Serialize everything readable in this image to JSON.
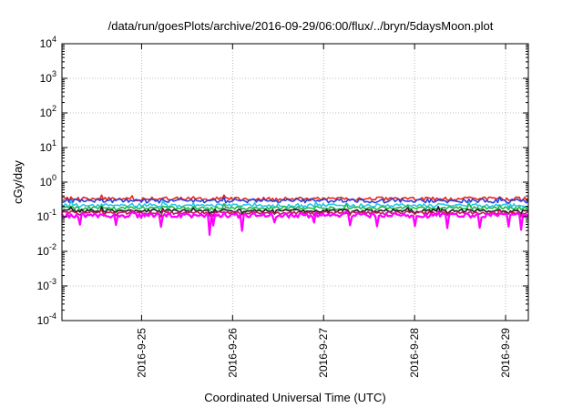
{
  "chart_data": {
    "type": "line",
    "title": "/data/run/goesPlots/archive/2016-09-29/06:00/flux/../bryn/5daysMoon.plot",
    "xlabel": "Coordinated Universal Time (UTC)",
    "ylabel": "cGy/day",
    "yscale": "log",
    "ylim": [
      0.0001,
      10000
    ],
    "xlim": [
      "2016-09-24 03:00",
      "2016-09-29 06:00"
    ],
    "grid": true,
    "legend": "none",
    "x_ticks": [
      "2016-9-25",
      "2016-9-26",
      "2016-9-27",
      "2016-9-28",
      "2016-9-29"
    ],
    "y_ticks": [
      {
        "value": 0.0001,
        "base": "10",
        "exp": "-4"
      },
      {
        "value": 0.001,
        "base": "10",
        "exp": "-3"
      },
      {
        "value": 0.01,
        "base": "10",
        "exp": "-2"
      },
      {
        "value": 0.1,
        "base": "10",
        "exp": "-1"
      },
      {
        "value": 1,
        "base": "10",
        "exp": "0"
      },
      {
        "value": 10,
        "base": "10",
        "exp": "1"
      },
      {
        "value": 100,
        "base": "10",
        "exp": "2"
      },
      {
        "value": 1000,
        "base": "10",
        "exp": "3"
      },
      {
        "value": 10000,
        "base": "10",
        "exp": "4"
      }
    ],
    "series": [
      {
        "color": "#e8261c",
        "base": 0.33,
        "noise": 0.12,
        "dips": 0.1
      },
      {
        "color": "#2b3fd8",
        "base": 0.29,
        "noise": 0.14,
        "dips": 0.1
      },
      {
        "color": "#27c8e6",
        "base": 0.215,
        "noise": 0.12,
        "dips": 0.15
      },
      {
        "color": "#2ab84a",
        "base": 0.18,
        "noise": 0.1,
        "dips": 0.15
      },
      {
        "color": "#1a1a1a",
        "base": 0.15,
        "noise": 0.1,
        "dips": 0.2
      },
      {
        "color": "#c2185b",
        "base": 0.13,
        "noise": 0.1,
        "dips": 0.25
      },
      {
        "color": "#ff00ff",
        "base": 0.11,
        "noise": 0.15,
        "dips": 0.9
      }
    ]
  }
}
